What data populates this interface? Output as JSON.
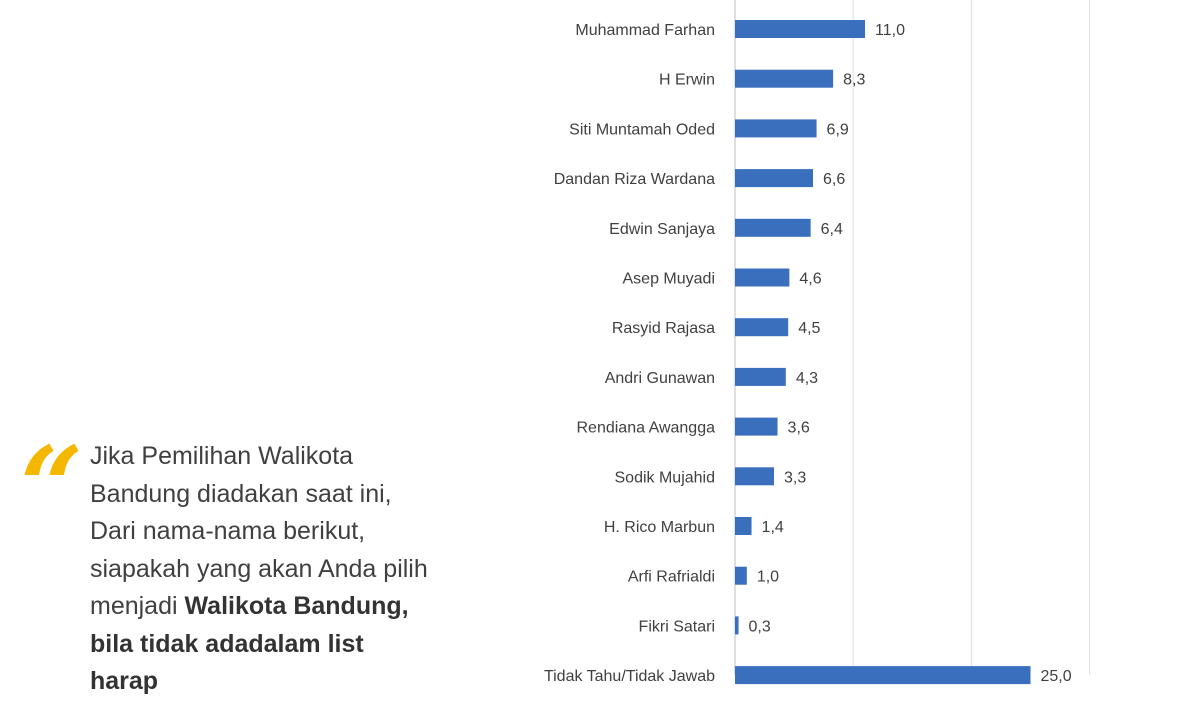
{
  "chart_data": {
    "type": "bar",
    "orientation": "horizontal",
    "categories": [
      "Muhammad Farhan",
      "H Erwin",
      "Siti Muntamah Oded",
      "Dandan Riza Wardana",
      "Edwin Sanjaya",
      "Asep Muyadi",
      "Rasyid Rajasa",
      "Andri Gunawan",
      "Rendiana Awangga",
      "Sodik Mujahid",
      "H. Rico Marbun",
      "Arfi Rafrialdi",
      "Fikri Satari",
      "Tidak Tahu/Tidak Jawab"
    ],
    "values": [
      11.0,
      8.3,
      6.9,
      6.6,
      6.4,
      4.6,
      4.5,
      4.3,
      3.6,
      3.3,
      1.4,
      1.0,
      0.3,
      25.0
    ],
    "value_labels": [
      "11,0",
      "8,3",
      "6,9",
      "6,6",
      "6,4",
      "4,6",
      "4,5",
      "4,3",
      "3,6",
      "3,3",
      "1,4",
      "1,0",
      "0,3",
      "25,0"
    ],
    "xlim": [
      0,
      30
    ],
    "grid": true,
    "bar_color": "#3a6fbe"
  },
  "question": {
    "part1": "Jika Pemilihan Walikota Bandung diadakan saat ini, Dari nama-nama berikut, siapakah yang akan Anda pilih menjadi ",
    "bold": "Walikota Bandung, bila tidak adadalam list harap"
  },
  "colors": {
    "quote_mark": "#f5b800",
    "text": "#404040"
  }
}
